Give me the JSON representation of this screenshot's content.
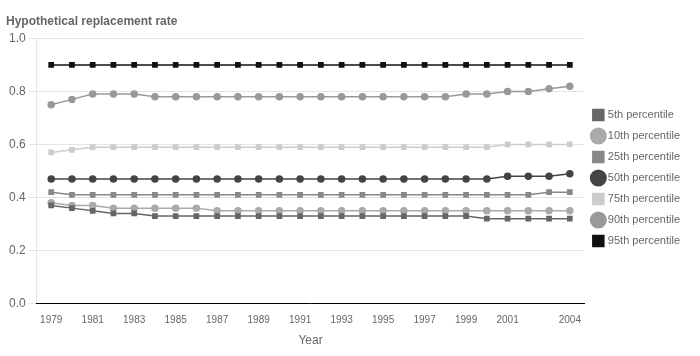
{
  "chart_data": {
    "type": "line",
    "title": "Hypothetical replacement rate",
    "xlabel": "Year",
    "x": [
      1979,
      1980,
      1981,
      1982,
      1983,
      1984,
      1985,
      1986,
      1987,
      1988,
      1989,
      1990,
      1991,
      1992,
      1993,
      1994,
      1995,
      1996,
      1997,
      1998,
      1999,
      2000,
      2001,
      2002,
      2003,
      2004
    ],
    "series": [
      {
        "name": "5th percentile",
        "color": "#666666",
        "marker": "square",
        "values": [
          0.37,
          0.36,
          0.35,
          0.34,
          0.34,
          0.33,
          0.33,
          0.33,
          0.33,
          0.33,
          0.33,
          0.33,
          0.33,
          0.33,
          0.33,
          0.33,
          0.33,
          0.33,
          0.33,
          0.33,
          0.33,
          0.32,
          0.32,
          0.32,
          0.32,
          0.32
        ]
      },
      {
        "name": "10th percentile",
        "color": "#aaaaaa",
        "marker": "circle",
        "values": [
          0.38,
          0.37,
          0.37,
          0.36,
          0.36,
          0.36,
          0.36,
          0.36,
          0.35,
          0.35,
          0.35,
          0.35,
          0.35,
          0.35,
          0.35,
          0.35,
          0.35,
          0.35,
          0.35,
          0.35,
          0.35,
          0.35,
          0.35,
          0.35,
          0.35,
          0.35
        ]
      },
      {
        "name": "25th percentile",
        "color": "#888888",
        "marker": "square",
        "values": [
          0.42,
          0.41,
          0.41,
          0.41,
          0.41,
          0.41,
          0.41,
          0.41,
          0.41,
          0.41,
          0.41,
          0.41,
          0.41,
          0.41,
          0.41,
          0.41,
          0.41,
          0.41,
          0.41,
          0.41,
          0.41,
          0.41,
          0.41,
          0.41,
          0.42,
          0.42
        ]
      },
      {
        "name": "50th percentile",
        "color": "#444444",
        "marker": "circle",
        "values": [
          0.47,
          0.47,
          0.47,
          0.47,
          0.47,
          0.47,
          0.47,
          0.47,
          0.47,
          0.47,
          0.47,
          0.47,
          0.47,
          0.47,
          0.47,
          0.47,
          0.47,
          0.47,
          0.47,
          0.47,
          0.47,
          0.47,
          0.48,
          0.48,
          0.48,
          0.49
        ]
      },
      {
        "name": "75th percentile",
        "color": "#cccccc",
        "marker": "square",
        "values": [
          0.57,
          0.58,
          0.59,
          0.59,
          0.59,
          0.59,
          0.59,
          0.59,
          0.59,
          0.59,
          0.59,
          0.59,
          0.59,
          0.59,
          0.59,
          0.59,
          0.59,
          0.59,
          0.59,
          0.59,
          0.59,
          0.59,
          0.6,
          0.6,
          0.6,
          0.6
        ]
      },
      {
        "name": "90th percentile",
        "color": "#999999",
        "marker": "circle",
        "values": [
          0.75,
          0.77,
          0.79,
          0.79,
          0.79,
          0.78,
          0.78,
          0.78,
          0.78,
          0.78,
          0.78,
          0.78,
          0.78,
          0.78,
          0.78,
          0.78,
          0.78,
          0.78,
          0.78,
          0.78,
          0.79,
          0.79,
          0.8,
          0.8,
          0.81,
          0.82
        ]
      },
      {
        "name": "95th percentile",
        "color": "#111111",
        "marker": "square",
        "values": [
          0.9,
          0.9,
          0.9,
          0.9,
          0.9,
          0.9,
          0.9,
          0.9,
          0.9,
          0.9,
          0.9,
          0.9,
          0.9,
          0.9,
          0.9,
          0.9,
          0.9,
          0.9,
          0.9,
          0.9,
          0.9,
          0.9,
          0.9,
          0.9,
          0.9,
          0.9
        ]
      }
    ],
    "xlim": [
      1978.3,
      2004.7
    ],
    "xticks": [
      1979,
      1981,
      1983,
      1985,
      1987,
      1989,
      1991,
      1993,
      1995,
      1997,
      1999,
      2001,
      2004
    ],
    "ylim": [
      0.0,
      1.0
    ],
    "yticks": [
      {
        "value": 0.0,
        "label": "0.0"
      },
      0.2,
      0.4,
      0.6,
      0.8,
      {
        "value": 1.0,
        "label": "1.0"
      }
    ],
    "grid": true,
    "legend": "right"
  }
}
